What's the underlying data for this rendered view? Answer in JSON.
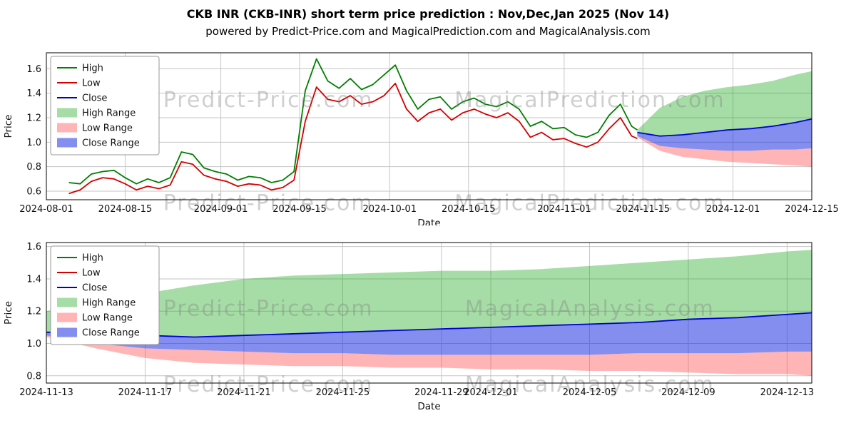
{
  "page": {
    "title": "CKB INR (CKB-INR) short term price prediction : Nov,Dec,Jan 2025 (Nov 14)",
    "subtitle": "powered by Predict-Price.com and MagicalPrediction.com and MagicalAnalysis.com"
  },
  "colors": {
    "high_line": "#007f00",
    "low_line": "#d40000",
    "close_line": "#0000cc",
    "high_range_fill": "rgba(0,158,0,0.35)",
    "low_range_fill": "rgba(255,70,70,0.40)",
    "close_range_fill": "rgba(30,50,225,0.55)",
    "grid": "#c6c6c6",
    "watermark": "rgba(128,128,128,0.38)"
  },
  "legend": [
    {
      "label": "High",
      "kind": "line",
      "color": "#007f00"
    },
    {
      "label": "Low",
      "kind": "line",
      "color": "#d40000"
    },
    {
      "label": "Close",
      "kind": "line",
      "color": "#0000cc"
    },
    {
      "label": "High Range",
      "kind": "band",
      "color": "rgba(0,158,0,0.35)"
    },
    {
      "label": "Low Range",
      "kind": "band",
      "color": "rgba(255,70,70,0.40)"
    },
    {
      "label": "Close Range",
      "kind": "band",
      "color": "rgba(30,50,225,0.55)"
    }
  ],
  "chart_data": [
    {
      "type": "line",
      "title": "",
      "xlabel": "Date",
      "ylabel": "Price",
      "xlim": [
        "2024-08-01",
        "2024-12-15"
      ],
      "ylim": [
        0.53,
        1.73
      ],
      "yticks": [
        0.6,
        0.8,
        1.0,
        1.2,
        1.4,
        1.6
      ],
      "xticks": [
        "2024-08-01",
        "2024-08-15",
        "2024-09-01",
        "2024-09-15",
        "2024-10-01",
        "2024-10-15",
        "2024-11-01",
        "2024-11-15",
        "2024-12-01",
        "2024-12-15"
      ],
      "grid": true,
      "legend_position": "top-left",
      "watermarks": [
        {
          "text": "Predict-Price.com",
          "x": 0.29,
          "y": 0.37
        },
        {
          "text": "MagicalPrediction.com",
          "x": 0.71,
          "y": 0.37
        },
        {
          "text": "Predict-Price.com",
          "x": 0.29,
          "y": 1.07
        },
        {
          "text": "MagicalPrediction.com",
          "x": 0.71,
          "y": 1.07
        }
      ],
      "series": [
        {
          "name": "High Range",
          "kind": "band",
          "color": "rgba(0,158,0,0.35)",
          "x": [
            "2024-11-14",
            "2024-11-18",
            "2024-11-22",
            "2024-11-26",
            "2024-11-30",
            "2024-12-04",
            "2024-12-08",
            "2024-12-12",
            "2024-12-15"
          ],
          "upper": [
            1.1,
            1.28,
            1.37,
            1.42,
            1.45,
            1.47,
            1.5,
            1.55,
            1.58
          ],
          "lower": [
            1.08,
            1.05,
            1.06,
            1.08,
            1.1,
            1.11,
            1.13,
            1.16,
            1.19
          ]
        },
        {
          "name": "Low Range",
          "kind": "band",
          "color": "rgba(255,70,70,0.40)",
          "x": [
            "2024-11-14",
            "2024-11-18",
            "2024-11-22",
            "2024-11-26",
            "2024-11-30",
            "2024-12-04",
            "2024-12-08",
            "2024-12-12",
            "2024-12-15"
          ],
          "upper": [
            1.05,
            0.97,
            0.95,
            0.94,
            0.93,
            0.93,
            0.94,
            0.94,
            0.95
          ],
          "lower": [
            1.04,
            0.93,
            0.88,
            0.86,
            0.84,
            0.83,
            0.82,
            0.81,
            0.8
          ]
        },
        {
          "name": "Close Range",
          "kind": "band",
          "color": "rgba(30,50,225,0.55)",
          "x": [
            "2024-11-14",
            "2024-11-18",
            "2024-11-22",
            "2024-11-26",
            "2024-11-30",
            "2024-12-04",
            "2024-12-08",
            "2024-12-12",
            "2024-12-15"
          ],
          "upper": [
            1.08,
            1.05,
            1.06,
            1.08,
            1.1,
            1.11,
            1.13,
            1.16,
            1.19
          ],
          "lower": [
            1.05,
            0.97,
            0.95,
            0.94,
            0.93,
            0.93,
            0.94,
            0.94,
            0.95
          ]
        },
        {
          "name": "High",
          "kind": "line",
          "color": "#007f00",
          "x": [
            "2024-08-05",
            "2024-08-07",
            "2024-08-09",
            "2024-08-11",
            "2024-08-13",
            "2024-08-15",
            "2024-08-17",
            "2024-08-19",
            "2024-08-21",
            "2024-08-23",
            "2024-08-25",
            "2024-08-27",
            "2024-08-29",
            "2024-08-31",
            "2024-09-02",
            "2024-09-04",
            "2024-09-06",
            "2024-09-08",
            "2024-09-10",
            "2024-09-12",
            "2024-09-14",
            "2024-09-16",
            "2024-09-18",
            "2024-09-20",
            "2024-09-22",
            "2024-09-24",
            "2024-09-26",
            "2024-09-28",
            "2024-09-30",
            "2024-10-02",
            "2024-10-04",
            "2024-10-06",
            "2024-10-08",
            "2024-10-10",
            "2024-10-12",
            "2024-10-14",
            "2024-10-16",
            "2024-10-18",
            "2024-10-20",
            "2024-10-22",
            "2024-10-24",
            "2024-10-26",
            "2024-10-28",
            "2024-10-30",
            "2024-11-01",
            "2024-11-03",
            "2024-11-05",
            "2024-11-07",
            "2024-11-09",
            "2024-11-11",
            "2024-11-13",
            "2024-11-14"
          ],
          "y": [
            0.67,
            0.66,
            0.74,
            0.76,
            0.77,
            0.71,
            0.66,
            0.7,
            0.67,
            0.71,
            0.92,
            0.9,
            0.79,
            0.76,
            0.74,
            0.69,
            0.72,
            0.71,
            0.67,
            0.69,
            0.76,
            1.42,
            1.68,
            1.5,
            1.44,
            1.52,
            1.43,
            1.47,
            1.55,
            1.63,
            1.42,
            1.27,
            1.35,
            1.37,
            1.27,
            1.33,
            1.36,
            1.31,
            1.29,
            1.33,
            1.27,
            1.13,
            1.17,
            1.11,
            1.12,
            1.06,
            1.04,
            1.08,
            1.22,
            1.31,
            1.13,
            1.1
          ]
        },
        {
          "name": "Low",
          "kind": "line",
          "color": "#d40000",
          "x": [
            "2024-08-05",
            "2024-08-07",
            "2024-08-09",
            "2024-08-11",
            "2024-08-13",
            "2024-08-15",
            "2024-08-17",
            "2024-08-19",
            "2024-08-21",
            "2024-08-23",
            "2024-08-25",
            "2024-08-27",
            "2024-08-29",
            "2024-08-31",
            "2024-09-02",
            "2024-09-04",
            "2024-09-06",
            "2024-09-08",
            "2024-09-10",
            "2024-09-12",
            "2024-09-14",
            "2024-09-16",
            "2024-09-18",
            "2024-09-20",
            "2024-09-22",
            "2024-09-24",
            "2024-09-26",
            "2024-09-28",
            "2024-09-30",
            "2024-10-02",
            "2024-10-04",
            "2024-10-06",
            "2024-10-08",
            "2024-10-10",
            "2024-10-12",
            "2024-10-14",
            "2024-10-16",
            "2024-10-18",
            "2024-10-20",
            "2024-10-22",
            "2024-10-24",
            "2024-10-26",
            "2024-10-28",
            "2024-10-30",
            "2024-11-01",
            "2024-11-03",
            "2024-11-05",
            "2024-11-07",
            "2024-11-09",
            "2024-11-11",
            "2024-11-13",
            "2024-11-14"
          ],
          "y": [
            0.58,
            0.61,
            0.68,
            0.71,
            0.7,
            0.66,
            0.61,
            0.64,
            0.62,
            0.65,
            0.84,
            0.82,
            0.73,
            0.7,
            0.68,
            0.64,
            0.66,
            0.65,
            0.61,
            0.63,
            0.69,
            1.17,
            1.45,
            1.35,
            1.33,
            1.38,
            1.31,
            1.33,
            1.38,
            1.48,
            1.27,
            1.17,
            1.24,
            1.27,
            1.18,
            1.24,
            1.27,
            1.23,
            1.2,
            1.24,
            1.17,
            1.04,
            1.08,
            1.02,
            1.03,
            0.99,
            0.96,
            1.0,
            1.11,
            1.2,
            1.05,
            1.03
          ]
        },
        {
          "name": "Close",
          "kind": "line",
          "color": "#0000cc",
          "x": [
            "2024-11-14",
            "2024-11-18",
            "2024-11-22",
            "2024-11-26",
            "2024-11-30",
            "2024-12-04",
            "2024-12-08",
            "2024-12-12",
            "2024-12-15"
          ],
          "y": [
            1.08,
            1.05,
            1.06,
            1.08,
            1.1,
            1.11,
            1.13,
            1.16,
            1.19
          ]
        }
      ]
    },
    {
      "type": "line",
      "title": "",
      "xlabel": "Date",
      "ylabel": "Price",
      "xlim": [
        "2024-11-13",
        "2024-12-14"
      ],
      "ylim": [
        0.755,
        1.625
      ],
      "yticks": [
        0.8,
        1.0,
        1.2,
        1.4,
        1.6
      ],
      "xticks": [
        "2024-11-13",
        "2024-11-17",
        "2024-11-21",
        "2024-11-25",
        "2024-11-29",
        "2024-12-01",
        "2024-12-05",
        "2024-12-09",
        "2024-12-13"
      ],
      "grid": true,
      "legend_position": "top-left",
      "watermarks": [
        {
          "text": "Predict-Price.com",
          "x": 0.29,
          "y": 0.52
        },
        {
          "text": "MagicalAnalysis.com",
          "x": 0.71,
          "y": 0.52
        },
        {
          "text": "Predict-Price.com",
          "x": 0.29,
          "y": 1.06
        },
        {
          "text": "MagicalAnalysis.com",
          "x": 0.71,
          "y": 1.06
        }
      ],
      "series": [
        {
          "name": "High Range",
          "kind": "band",
          "color": "rgba(0,158,0,0.35)",
          "x": [
            "2024-11-13",
            "2024-11-15",
            "2024-11-17",
            "2024-11-19",
            "2024-11-21",
            "2024-11-23",
            "2024-11-25",
            "2024-11-27",
            "2024-11-29",
            "2024-12-01",
            "2024-12-03",
            "2024-12-05",
            "2024-12-07",
            "2024-12-09",
            "2024-12-11",
            "2024-12-13",
            "2024-12-14"
          ],
          "upper": [
            1.2,
            1.26,
            1.31,
            1.36,
            1.4,
            1.42,
            1.43,
            1.44,
            1.45,
            1.45,
            1.46,
            1.48,
            1.5,
            1.52,
            1.54,
            1.57,
            1.58
          ],
          "lower": [
            1.07,
            1.06,
            1.05,
            1.04,
            1.05,
            1.06,
            1.07,
            1.08,
            1.09,
            1.1,
            1.11,
            1.12,
            1.13,
            1.15,
            1.16,
            1.18,
            1.19
          ]
        },
        {
          "name": "Low Range",
          "kind": "band",
          "color": "rgba(255,70,70,0.40)",
          "x": [
            "2024-11-13",
            "2024-11-15",
            "2024-11-17",
            "2024-11-19",
            "2024-11-21",
            "2024-11-23",
            "2024-11-25",
            "2024-11-27",
            "2024-11-29",
            "2024-12-01",
            "2024-12-03",
            "2024-12-05",
            "2024-12-07",
            "2024-12-09",
            "2024-12-11",
            "2024-12-13",
            "2024-12-14"
          ],
          "upper": [
            1.05,
            1.0,
            0.97,
            0.96,
            0.95,
            0.94,
            0.94,
            0.93,
            0.93,
            0.93,
            0.93,
            0.93,
            0.94,
            0.94,
            0.94,
            0.95,
            0.95
          ],
          "lower": [
            1.04,
            0.97,
            0.91,
            0.88,
            0.87,
            0.86,
            0.86,
            0.85,
            0.85,
            0.84,
            0.84,
            0.83,
            0.83,
            0.82,
            0.81,
            0.81,
            0.8
          ]
        },
        {
          "name": "Close Range",
          "kind": "band",
          "color": "rgba(30,50,225,0.55)",
          "x": [
            "2024-11-13",
            "2024-11-15",
            "2024-11-17",
            "2024-11-19",
            "2024-11-21",
            "2024-11-23",
            "2024-11-25",
            "2024-11-27",
            "2024-11-29",
            "2024-12-01",
            "2024-12-03",
            "2024-12-05",
            "2024-12-07",
            "2024-12-09",
            "2024-12-11",
            "2024-12-13",
            "2024-12-14"
          ],
          "upper": [
            1.07,
            1.06,
            1.05,
            1.04,
            1.05,
            1.06,
            1.07,
            1.08,
            1.09,
            1.1,
            1.11,
            1.12,
            1.13,
            1.15,
            1.16,
            1.18,
            1.19
          ],
          "lower": [
            1.05,
            1.0,
            0.97,
            0.96,
            0.95,
            0.94,
            0.94,
            0.93,
            0.93,
            0.93,
            0.93,
            0.93,
            0.94,
            0.94,
            0.94,
            0.95,
            0.95
          ]
        },
        {
          "name": "Close",
          "kind": "line",
          "color": "#0000cc",
          "x": [
            "2024-11-13",
            "2024-11-15",
            "2024-11-17",
            "2024-11-19",
            "2024-11-21",
            "2024-11-23",
            "2024-11-25",
            "2024-11-27",
            "2024-11-29",
            "2024-12-01",
            "2024-12-03",
            "2024-12-05",
            "2024-12-07",
            "2024-12-09",
            "2024-12-11",
            "2024-12-13",
            "2024-12-14"
          ],
          "y": [
            1.07,
            1.06,
            1.05,
            1.04,
            1.05,
            1.06,
            1.07,
            1.08,
            1.09,
            1.1,
            1.11,
            1.12,
            1.13,
            1.15,
            1.16,
            1.18,
            1.19
          ]
        }
      ]
    }
  ]
}
